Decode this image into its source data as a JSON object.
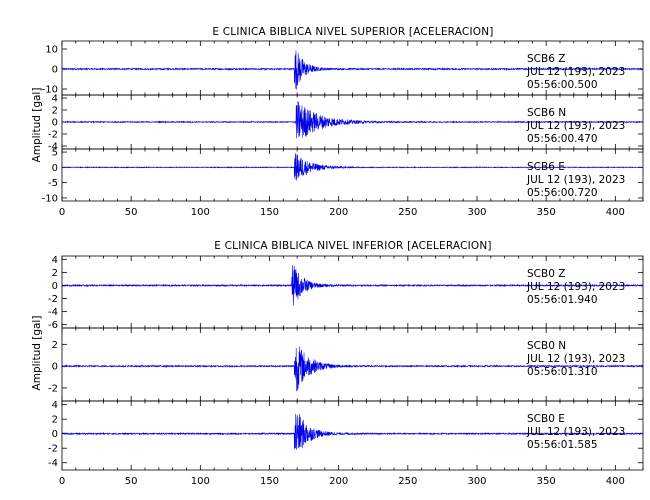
{
  "chart_data": [
    {
      "type": "line",
      "title": "E CLINICA BIBLICA NIVEL SUPERIOR [ACELERACION]",
      "ylabel": "Amplitud [gal]",
      "xlim": [
        0,
        420
      ],
      "x_ticks": [
        "0",
        "50",
        "100",
        "150",
        "200",
        "250",
        "300",
        "350",
        "400"
      ],
      "traces": [
        {
          "station": "SCB6",
          "component": "Z",
          "date": "JUL 12 (193), 2023",
          "time": "05:56:00.500",
          "ylim": [
            -13,
            14
          ],
          "y_ticks": [
            "10",
            "0",
            "-10"
          ],
          "y_tick_values": [
            10,
            0,
            -10
          ],
          "onset_s": 168,
          "peak": 13,
          "decay_s": 6,
          "noise": 0.35
        },
        {
          "station": "SCB6",
          "component": "N",
          "date": "JUL 12 (193), 2023",
          "time": "05:56:00.470",
          "ylim": [
            -4.5,
            4.5
          ],
          "y_ticks": [
            "4",
            "2",
            "0",
            "-2",
            "-4"
          ],
          "y_tick_values": [
            4,
            2,
            0,
            -2,
            -4
          ],
          "onset_s": 169,
          "peak": 4,
          "decay_s": 15,
          "noise": 0.08
        },
        {
          "station": "SCB6",
          "component": "E",
          "date": "JUL 12 (193), 2023",
          "time": "05:56:00.720",
          "ylim": [
            -11,
            6
          ],
          "y_ticks": [
            "5",
            "0",
            "-5",
            "-10"
          ],
          "y_tick_values": [
            5,
            0,
            -5,
            -10
          ],
          "onset_s": 168,
          "peak": 5.5,
          "decay_s": 10,
          "noise": 0.12
        }
      ]
    },
    {
      "type": "line",
      "title": "E CLINICA BIBLICA NIVEL INFERIOR [ACELERACION]",
      "ylabel": "Amplitud [gal]",
      "xlim": [
        0,
        420
      ],
      "x_ticks": [
        "0",
        "50",
        "100",
        "150",
        "200",
        "250",
        "300",
        "350",
        "400"
      ],
      "traces": [
        {
          "station": "SCB0",
          "component": "Z",
          "date": "JUL 12 (193), 2023",
          "time": "05:56:01.940",
          "ylim": [
            -6.5,
            4.5
          ],
          "y_ticks": [
            "4",
            "2",
            "0",
            "-2",
            "-4",
            "-6"
          ],
          "y_tick_values": [
            4,
            2,
            0,
            -2,
            -4,
            -6
          ],
          "onset_s": 166,
          "peak": 4,
          "decay_s": 7,
          "noise": 0.1
        },
        {
          "station": "SCB0",
          "component": "N",
          "date": "JUL 12 (193), 2023",
          "time": "05:56:01.310",
          "ylim": [
            -3.2,
            3.5
          ],
          "y_ticks": [
            "2",
            "0",
            "-2"
          ],
          "y_tick_values": [
            2,
            0,
            -2
          ],
          "onset_s": 168,
          "peak": 2.8,
          "decay_s": 9,
          "noise": 0.06
        },
        {
          "station": "SCB0",
          "component": "E",
          "date": "JUL 12 (193), 2023",
          "time": "05:56:01.585",
          "ylim": [
            -5,
            4.5
          ],
          "y_ticks": [
            "4",
            "2",
            "0",
            "-2",
            "-4"
          ],
          "y_tick_values": [
            4,
            2,
            0,
            -2,
            -4
          ],
          "onset_s": 168,
          "peak": 4.2,
          "decay_s": 8,
          "noise": 0.09
        }
      ]
    }
  ]
}
